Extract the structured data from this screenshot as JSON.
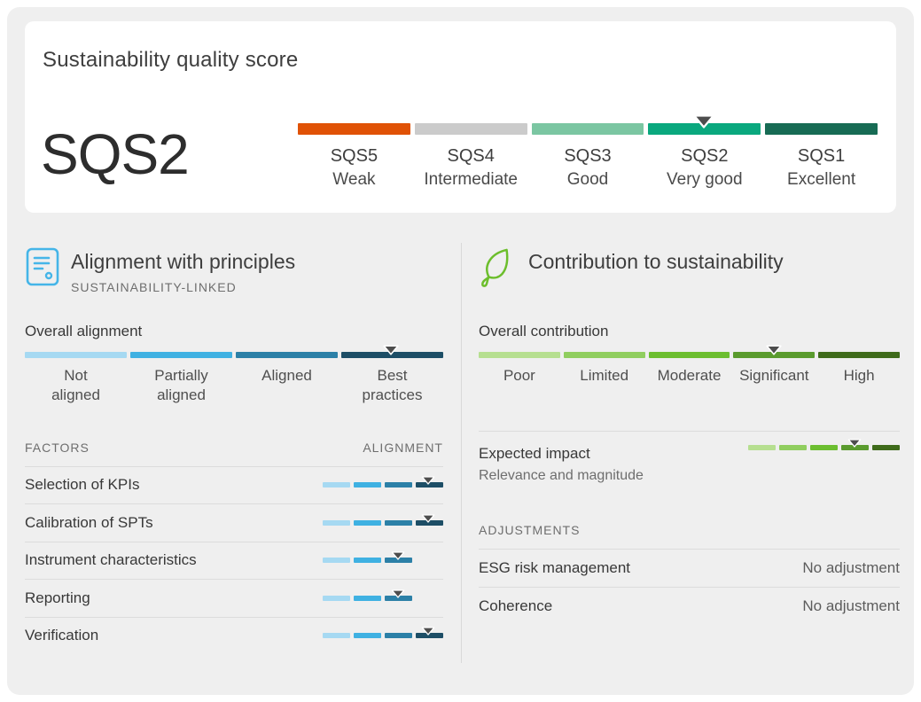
{
  "palette": {
    "marker": "#4D4D4D",
    "sqs": [
      "#E05206",
      "#CBCBCB",
      "#7BC6A2",
      "#0AA87E",
      "#176B54"
    ],
    "blue": [
      "#A6D9F2",
      "#3FB1E2",
      "#2C80A7",
      "#1D4E66"
    ],
    "green": [
      "#B6DF90",
      "#90CE5F",
      "#6CBE30",
      "#5A9B2E",
      "#3F6B1B"
    ],
    "doc_icon": "#45B5E8",
    "leaf_icon": "#6CBE2C"
  },
  "scorecard": {
    "title": "Sustainability quality score",
    "score": "SQS2",
    "scale": {
      "palette": "sqs",
      "slots": 5,
      "segments_shown": 5,
      "marker_index": 3,
      "steps": [
        {
          "code": "SQS5",
          "name": "Weak"
        },
        {
          "code": "SQS4",
          "name": "Intermediate"
        },
        {
          "code": "SQS3",
          "name": "Good"
        },
        {
          "code": "SQS2",
          "name": "Very good"
        },
        {
          "code": "SQS1",
          "name": "Excellent"
        }
      ]
    }
  },
  "alignment": {
    "icon": "document-lines-icon",
    "title": "Alignment with principles",
    "subtitle": "SUSTAINABILITY-LINKED",
    "overall_label": "Overall alignment",
    "overall_scale": {
      "palette": "blue",
      "slots": 4,
      "segments_shown": 4,
      "marker_index": 3,
      "labels": [
        "Not\naligned",
        "Partially\naligned",
        "Aligned",
        "Best\npractices"
      ]
    },
    "table": {
      "factors_header": "FACTORS",
      "alignment_header": "ALIGNMENT",
      "rows": [
        {
          "label": "Selection of KPIs",
          "rating": "Best practices",
          "scale": {
            "palette": "blue",
            "slots": 4,
            "segments_shown": 4,
            "marker_index": 3
          }
        },
        {
          "label": "Calibration of SPTs",
          "rating": "Best practices",
          "scale": {
            "palette": "blue",
            "slots": 4,
            "segments_shown": 4,
            "marker_index": 3
          }
        },
        {
          "label": "Instrument characteristics",
          "rating": "Aligned",
          "scale": {
            "palette": "blue",
            "slots": 4,
            "segments_shown": 3,
            "marker_index": 2
          }
        },
        {
          "label": "Reporting",
          "rating": "Aligned",
          "scale": {
            "palette": "blue",
            "slots": 4,
            "segments_shown": 3,
            "marker_index": 2
          }
        },
        {
          "label": "Verification",
          "rating": "Best practices",
          "scale": {
            "palette": "blue",
            "slots": 4,
            "segments_shown": 4,
            "marker_index": 3
          }
        }
      ]
    }
  },
  "contribution": {
    "icon": "leaf-icon",
    "title": "Contribution to sustainability",
    "overall_label": "Overall contribution",
    "overall_scale": {
      "palette": "green",
      "slots": 5,
      "segments_shown": 5,
      "marker_index": 3,
      "labels": [
        "Poor",
        "Limited",
        "Moderate",
        "Significant",
        "High"
      ]
    },
    "expected_impact": {
      "label": "Expected impact",
      "sublabel": "Relevance and magnitude",
      "rating": "Significant",
      "scale": {
        "palette": "green",
        "slots": 5,
        "segments_shown": 5,
        "marker_index": 3
      }
    },
    "adjustments": {
      "header": "ADJUSTMENTS",
      "rows": [
        {
          "label": "ESG risk management",
          "value": "No adjustment"
        },
        {
          "label": "Coherence",
          "value": "No adjustment"
        }
      ]
    }
  },
  "chart_data": {
    "type": "table",
    "title": "Sustainability quality score",
    "overall_score": {
      "value": "SQS2",
      "meaning": "Very good",
      "scale": [
        "SQS5 Weak",
        "SQS4 Intermediate",
        "SQS3 Good",
        "SQS2 Very good",
        "SQS1 Excellent"
      ],
      "position": 4
    },
    "alignment_with_principles": {
      "framework": "SUSTAINABILITY-LINKED",
      "scale": [
        "Not aligned",
        "Partially aligned",
        "Aligned",
        "Best practices"
      ],
      "overall": "Best practices",
      "factors": [
        {
          "factor": "Selection of KPIs",
          "alignment": "Best practices"
        },
        {
          "factor": "Calibration of SPTs",
          "alignment": "Best practices"
        },
        {
          "factor": "Instrument characteristics",
          "alignment": "Aligned"
        },
        {
          "factor": "Reporting",
          "alignment": "Aligned"
        },
        {
          "factor": "Verification",
          "alignment": "Best practices"
        }
      ]
    },
    "contribution_to_sustainability": {
      "scale": [
        "Poor",
        "Limited",
        "Moderate",
        "Significant",
        "High"
      ],
      "overall": "Significant",
      "expected_impact": "Significant",
      "adjustments": [
        {
          "label": "ESG risk management",
          "value": "No adjustment"
        },
        {
          "label": "Coherence",
          "value": "No adjustment"
        }
      ]
    }
  }
}
